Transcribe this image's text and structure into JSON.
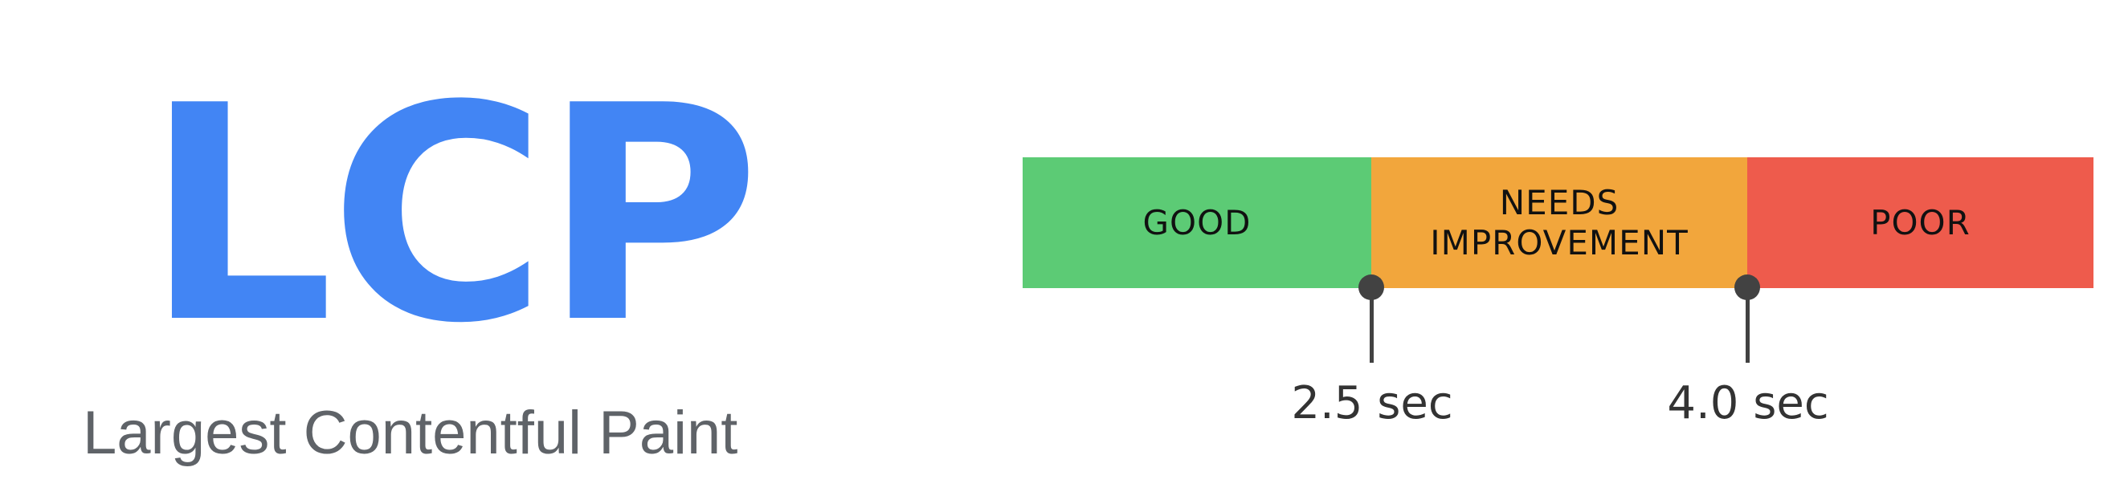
{
  "metric": {
    "abbreviation": "LCP",
    "full_name": "Largest Contentful Paint"
  },
  "scale": {
    "segments": [
      {
        "label": "GOOD",
        "color": "#5ccb75"
      },
      {
        "label": "NEEDS\nIMPROVEMENT",
        "color": "#f2a63c"
      },
      {
        "label": "POOR",
        "color": "#ee5b4c"
      }
    ],
    "thresholds": [
      {
        "label": "2.5 sec"
      },
      {
        "label": "4.0 sec"
      }
    ]
  },
  "colors": {
    "accent": "#4285f4",
    "tick": "#424242"
  }
}
